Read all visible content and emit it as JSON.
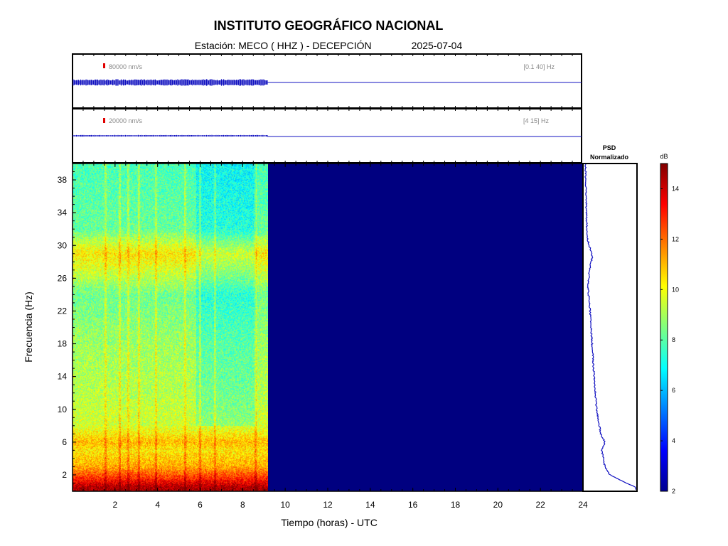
{
  "header": {
    "title": "INSTITUTO GEOGRÁFICO NACIONAL",
    "station": "Estación:  MECO ( HHZ ) - DECEPCIÓN",
    "date": "2025-07-04"
  },
  "traces": [
    {
      "scale_label": "80000 nm/s",
      "band_label": "[0.1 40] Hz",
      "relative_amplitude": 0.09,
      "data_end_hour": 9.2
    },
    {
      "scale_label": "20000 nm/s",
      "band_label": "[4 15] Hz",
      "relative_amplitude": 0.02,
      "data_end_hour": 9.2
    }
  ],
  "psd": {
    "title_line1": "PSD",
    "title_line2": "Normalizado"
  },
  "colorbar": {
    "label": "dB",
    "ticks": [
      2,
      4,
      6,
      8,
      10,
      12,
      14
    ],
    "range": [
      2,
      15
    ]
  },
  "chart_data": {
    "type": "heatmap",
    "xlabel": "Tiempo (horas) - UTC",
    "ylabel": "Frecuencia  (Hz)",
    "xlim": [
      0,
      24
    ],
    "ylim": [
      0,
      40
    ],
    "xticks": [
      2,
      4,
      6,
      8,
      10,
      12,
      14,
      16,
      18,
      20,
      22,
      24
    ],
    "yticks": [
      2,
      6,
      10,
      14,
      18,
      22,
      26,
      30,
      34,
      38
    ],
    "data_end_hour": 9.2,
    "no_data_value_db": 2,
    "spectral_profile_db": [
      {
        "freq": 0.5,
        "db": 14.5
      },
      {
        "freq": 1.5,
        "db": 13.0
      },
      {
        "freq": 3,
        "db": 11.2
      },
      {
        "freq": 5,
        "db": 10.4
      },
      {
        "freq": 6,
        "db": 11.0
      },
      {
        "freq": 8,
        "db": 9.6
      },
      {
        "freq": 12,
        "db": 9.2
      },
      {
        "freq": 18,
        "db": 8.9
      },
      {
        "freq": 24,
        "db": 8.3
      },
      {
        "freq": 27,
        "db": 9.6
      },
      {
        "freq": 29,
        "db": 10.4
      },
      {
        "freq": 32,
        "db": 8.2
      },
      {
        "freq": 36,
        "db": 8.0
      },
      {
        "freq": 40,
        "db": 7.8
      }
    ],
    "psd_normalized": [
      {
        "freq": 0.5,
        "value": 1.0
      },
      {
        "freq": 1,
        "value": 0.82
      },
      {
        "freq": 2,
        "value": 0.5
      },
      {
        "freq": 3,
        "value": 0.4
      },
      {
        "freq": 5,
        "value": 0.34
      },
      {
        "freq": 6,
        "value": 0.4
      },
      {
        "freq": 7,
        "value": 0.32
      },
      {
        "freq": 10,
        "value": 0.24
      },
      {
        "freq": 14,
        "value": 0.19
      },
      {
        "freq": 18,
        "value": 0.15
      },
      {
        "freq": 22,
        "value": 0.11
      },
      {
        "freq": 25,
        "value": 0.07
      },
      {
        "freq": 27,
        "value": 0.1
      },
      {
        "freq": 28.5,
        "value": 0.15
      },
      {
        "freq": 29.5,
        "value": 0.12
      },
      {
        "freq": 31,
        "value": 0.05
      },
      {
        "freq": 34,
        "value": 0.04
      },
      {
        "freq": 37,
        "value": 0.03
      },
      {
        "freq": 40,
        "value": 0.02
      }
    ]
  }
}
